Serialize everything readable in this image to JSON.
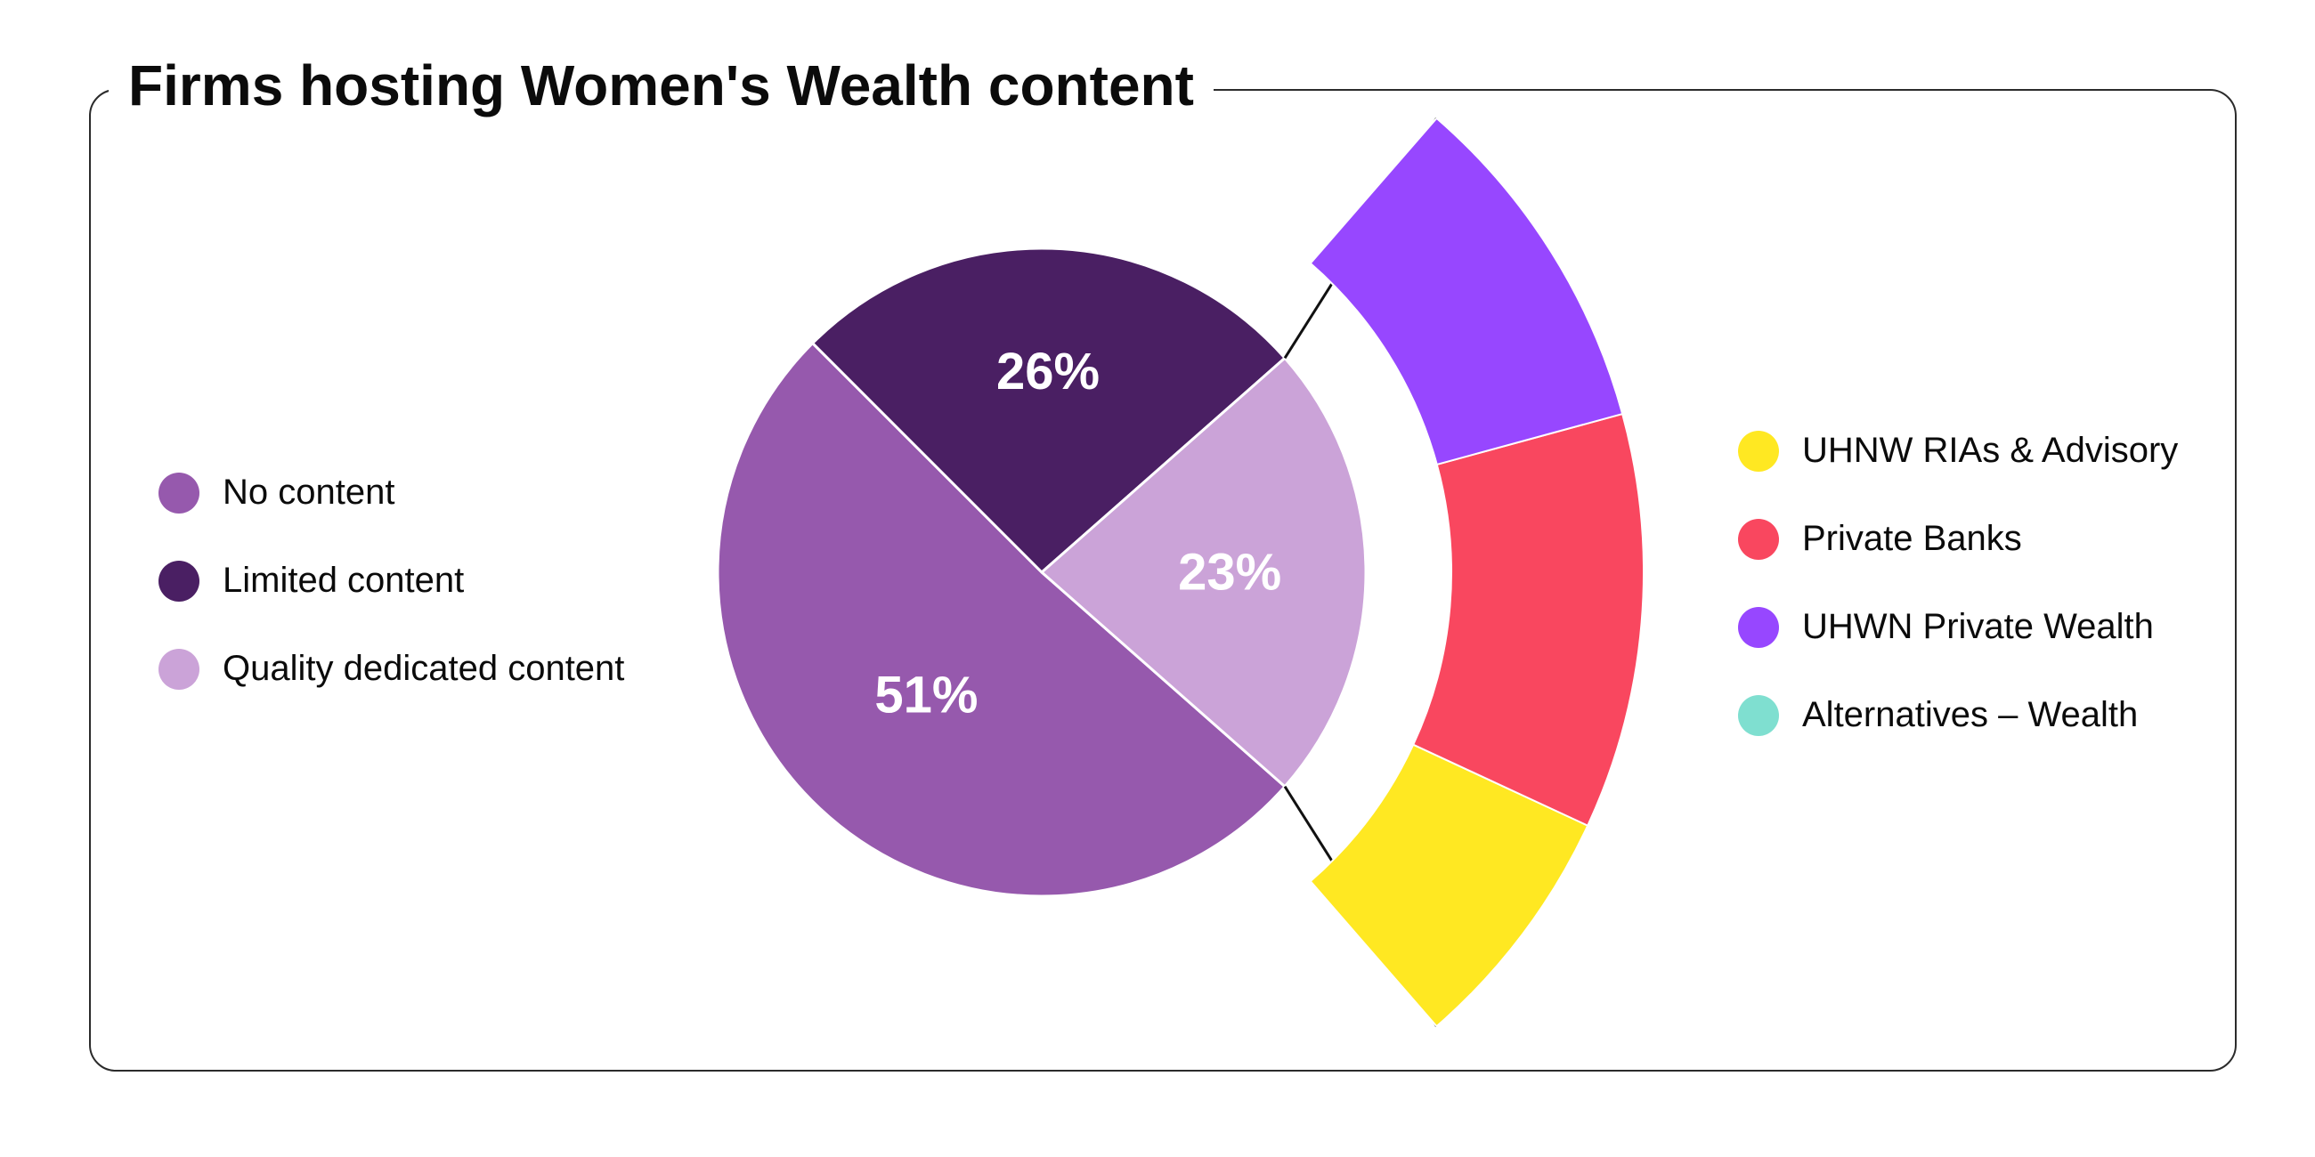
{
  "chart_data": {
    "type": "pie",
    "title": "Firms hosting Women's Wealth content",
    "pie": {
      "slices": [
        {
          "label": "No content",
          "value": 51,
          "value_label": "51%",
          "color": "#9659AD"
        },
        {
          "label": "Limited content",
          "value": 26,
          "value_label": "26%",
          "color": "#4A1F63"
        },
        {
          "label": "Quality dedicated content",
          "value": 23,
          "value_label": "23%",
          "color": "#CBA3D8"
        }
      ]
    },
    "breakdown": {
      "of": "Quality dedicated content",
      "segments": [
        {
          "label": "UHNW RIAs & Advisory",
          "value": 4.5,
          "color": "#FFE822"
        },
        {
          "label": "Private Banks",
          "value": 7.5,
          "color": "#F9475F"
        },
        {
          "label": "UHWN Private Wealth",
          "value": 6.3,
          "color": "#9747FF"
        },
        {
          "label": "Alternatives – Wealth",
          "value": 0,
          "color": "#7FDFD0"
        }
      ]
    },
    "legend_position": [
      "left",
      "right"
    ]
  }
}
